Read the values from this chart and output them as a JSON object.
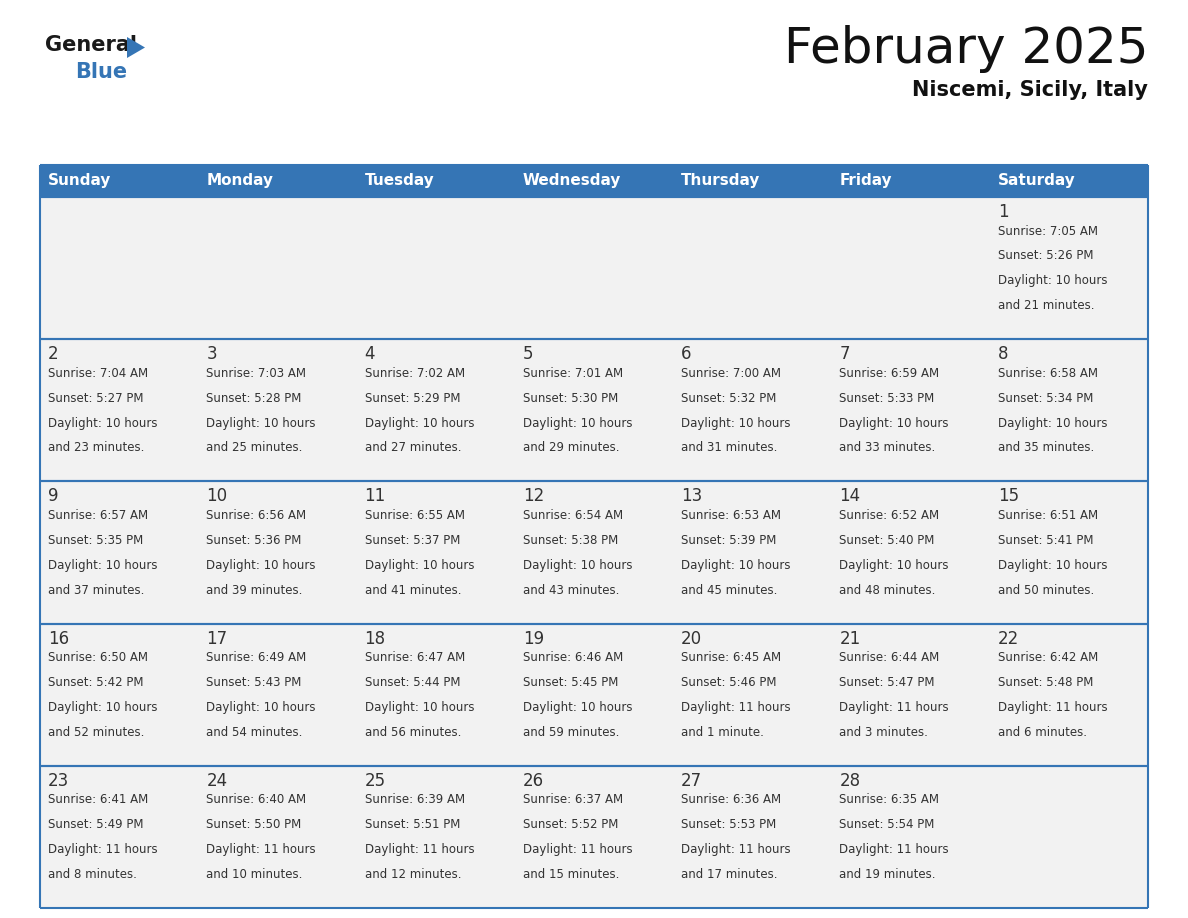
{
  "title": "February 2025",
  "subtitle": "Niscemi, Sicily, Italy",
  "header_color": "#3575b5",
  "header_text_color": "#ffffff",
  "cell_bg_even": "#ffffff",
  "cell_bg_odd": "#f0f0f0",
  "border_color": "#3575b5",
  "text_color": "#333333",
  "day_number_color": "#333333",
  "day_headers": [
    "Sunday",
    "Monday",
    "Tuesday",
    "Wednesday",
    "Thursday",
    "Friday",
    "Saturday"
  ],
  "days": [
    {
      "day": 1,
      "col": 6,
      "row": 0,
      "sunrise": "7:05 AM",
      "sunset": "5:26 PM",
      "daylight": "10 hours",
      "daylight2": "and 21 minutes."
    },
    {
      "day": 2,
      "col": 0,
      "row": 1,
      "sunrise": "7:04 AM",
      "sunset": "5:27 PM",
      "daylight": "10 hours",
      "daylight2": "and 23 minutes."
    },
    {
      "day": 3,
      "col": 1,
      "row": 1,
      "sunrise": "7:03 AM",
      "sunset": "5:28 PM",
      "daylight": "10 hours",
      "daylight2": "and 25 minutes."
    },
    {
      "day": 4,
      "col": 2,
      "row": 1,
      "sunrise": "7:02 AM",
      "sunset": "5:29 PM",
      "daylight": "10 hours",
      "daylight2": "and 27 minutes."
    },
    {
      "day": 5,
      "col": 3,
      "row": 1,
      "sunrise": "7:01 AM",
      "sunset": "5:30 PM",
      "daylight": "10 hours",
      "daylight2": "and 29 minutes."
    },
    {
      "day": 6,
      "col": 4,
      "row": 1,
      "sunrise": "7:00 AM",
      "sunset": "5:32 PM",
      "daylight": "10 hours",
      "daylight2": "and 31 minutes."
    },
    {
      "day": 7,
      "col": 5,
      "row": 1,
      "sunrise": "6:59 AM",
      "sunset": "5:33 PM",
      "daylight": "10 hours",
      "daylight2": "and 33 minutes."
    },
    {
      "day": 8,
      "col": 6,
      "row": 1,
      "sunrise": "6:58 AM",
      "sunset": "5:34 PM",
      "daylight": "10 hours",
      "daylight2": "and 35 minutes."
    },
    {
      "day": 9,
      "col": 0,
      "row": 2,
      "sunrise": "6:57 AM",
      "sunset": "5:35 PM",
      "daylight": "10 hours",
      "daylight2": "and 37 minutes."
    },
    {
      "day": 10,
      "col": 1,
      "row": 2,
      "sunrise": "6:56 AM",
      "sunset": "5:36 PM",
      "daylight": "10 hours",
      "daylight2": "and 39 minutes."
    },
    {
      "day": 11,
      "col": 2,
      "row": 2,
      "sunrise": "6:55 AM",
      "sunset": "5:37 PM",
      "daylight": "10 hours",
      "daylight2": "and 41 minutes."
    },
    {
      "day": 12,
      "col": 3,
      "row": 2,
      "sunrise": "6:54 AM",
      "sunset": "5:38 PM",
      "daylight": "10 hours",
      "daylight2": "and 43 minutes."
    },
    {
      "day": 13,
      "col": 4,
      "row": 2,
      "sunrise": "6:53 AM",
      "sunset": "5:39 PM",
      "daylight": "10 hours",
      "daylight2": "and 45 minutes."
    },
    {
      "day": 14,
      "col": 5,
      "row": 2,
      "sunrise": "6:52 AM",
      "sunset": "5:40 PM",
      "daylight": "10 hours",
      "daylight2": "and 48 minutes."
    },
    {
      "day": 15,
      "col": 6,
      "row": 2,
      "sunrise": "6:51 AM",
      "sunset": "5:41 PM",
      "daylight": "10 hours",
      "daylight2": "and 50 minutes."
    },
    {
      "day": 16,
      "col": 0,
      "row": 3,
      "sunrise": "6:50 AM",
      "sunset": "5:42 PM",
      "daylight": "10 hours",
      "daylight2": "and 52 minutes."
    },
    {
      "day": 17,
      "col": 1,
      "row": 3,
      "sunrise": "6:49 AM",
      "sunset": "5:43 PM",
      "daylight": "10 hours",
      "daylight2": "and 54 minutes."
    },
    {
      "day": 18,
      "col": 2,
      "row": 3,
      "sunrise": "6:47 AM",
      "sunset": "5:44 PM",
      "daylight": "10 hours",
      "daylight2": "and 56 minutes."
    },
    {
      "day": 19,
      "col": 3,
      "row": 3,
      "sunrise": "6:46 AM",
      "sunset": "5:45 PM",
      "daylight": "10 hours",
      "daylight2": "and 59 minutes."
    },
    {
      "day": 20,
      "col": 4,
      "row": 3,
      "sunrise": "6:45 AM",
      "sunset": "5:46 PM",
      "daylight": "11 hours",
      "daylight2": "and 1 minute."
    },
    {
      "day": 21,
      "col": 5,
      "row": 3,
      "sunrise": "6:44 AM",
      "sunset": "5:47 PM",
      "daylight": "11 hours",
      "daylight2": "and 3 minutes."
    },
    {
      "day": 22,
      "col": 6,
      "row": 3,
      "sunrise": "6:42 AM",
      "sunset": "5:48 PM",
      "daylight": "11 hours",
      "daylight2": "and 6 minutes."
    },
    {
      "day": 23,
      "col": 0,
      "row": 4,
      "sunrise": "6:41 AM",
      "sunset": "5:49 PM",
      "daylight": "11 hours",
      "daylight2": "and 8 minutes."
    },
    {
      "day": 24,
      "col": 1,
      "row": 4,
      "sunrise": "6:40 AM",
      "sunset": "5:50 PM",
      "daylight": "11 hours",
      "daylight2": "and 10 minutes."
    },
    {
      "day": 25,
      "col": 2,
      "row": 4,
      "sunrise": "6:39 AM",
      "sunset": "5:51 PM",
      "daylight": "11 hours",
      "daylight2": "and 12 minutes."
    },
    {
      "day": 26,
      "col": 3,
      "row": 4,
      "sunrise": "6:37 AM",
      "sunset": "5:52 PM",
      "daylight": "11 hours",
      "daylight2": "and 15 minutes."
    },
    {
      "day": 27,
      "col": 4,
      "row": 4,
      "sunrise": "6:36 AM",
      "sunset": "5:53 PM",
      "daylight": "11 hours",
      "daylight2": "and 17 minutes."
    },
    {
      "day": 28,
      "col": 5,
      "row": 4,
      "sunrise": "6:35 AM",
      "sunset": "5:54 PM",
      "daylight": "11 hours",
      "daylight2": "and 19 minutes."
    }
  ]
}
